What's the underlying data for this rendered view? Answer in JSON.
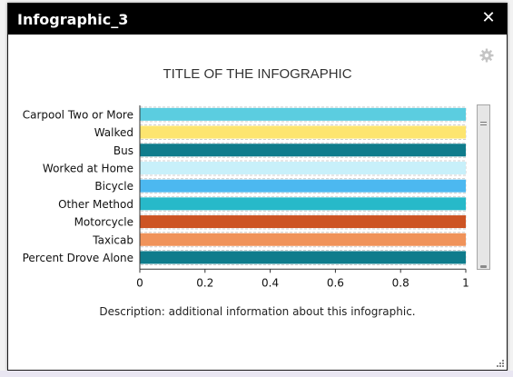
{
  "window": {
    "title": "Infographic_3",
    "close_icon": "close-icon",
    "settings_icon": "gear-icon"
  },
  "chart_data": {
    "type": "bar",
    "orientation": "horizontal",
    "title": "TITLE OF THE INFOGRAPHIC",
    "description": "Description: additional information about this infographic.",
    "categories": [
      "Carpool Two or More",
      "Walked",
      "Bus",
      "Worked at Home",
      "Bicycle",
      "Other Method",
      "Motorcycle",
      "Taxicab",
      "Percent Drove Alone"
    ],
    "values": [
      1,
      1,
      1,
      1,
      1,
      1,
      1,
      1,
      1
    ],
    "colors": [
      "#5bcde0",
      "#fde56f",
      "#0f7c8c",
      "#c8f0fa",
      "#4cb8f0",
      "#27b9c9",
      "#cd5424",
      "#f0935a",
      "#0f7c8c"
    ],
    "xlim": [
      0,
      1
    ],
    "xticks": [
      "0",
      "0.2",
      "0.4",
      "0.6",
      "0.8",
      "1"
    ],
    "grid": false
  }
}
